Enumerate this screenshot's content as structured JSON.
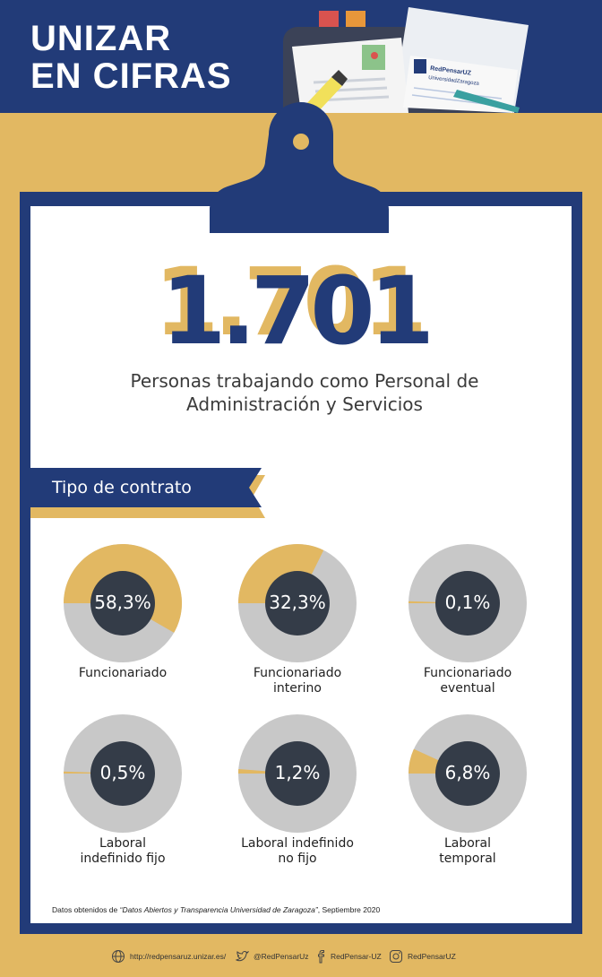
{
  "header": {
    "title_line1": "UNIZAR",
    "title_line2": "EN CIFRAS",
    "logo_line1": "RedPensarUZ",
    "logo_line2": "UniversidadZaragoza"
  },
  "hero": {
    "number": "1.701",
    "subtitle_line1": "Personas trabajando como Personal de",
    "subtitle_line2": "Administración y Servicios"
  },
  "section": {
    "title": "Tipo de contrato"
  },
  "donuts": [
    {
      "pct_label": "58,3%",
      "value": 58.3,
      "label_line1": "Funcionariado",
      "label_line2": ""
    },
    {
      "pct_label": "32,3%",
      "value": 32.3,
      "label_line1": "Funcionariado",
      "label_line2": "interino"
    },
    {
      "pct_label": "0,1%",
      "value": 0.1,
      "label_line1": "Funcionariado",
      "label_line2": "eventual"
    },
    {
      "pct_label": "0,5%",
      "value": 0.5,
      "label_line1": "Laboral",
      "label_line2": "indefinido fijo"
    },
    {
      "pct_label": "1,2%",
      "value": 1.2,
      "label_line1": "Laboral indefinido",
      "label_line2": "no fijo"
    },
    {
      "pct_label": "6,8%",
      "value": 6.8,
      "label_line1": "Laboral",
      "label_line2": "temporal"
    }
  ],
  "footnote": {
    "prefix": "Datos obtenidos de ",
    "source": "“Datos Abiertos y Transparencia Universidad de Zaragoza”",
    "suffix": ", Septiembre 2020"
  },
  "footer": {
    "website": "http://redpensaruz.unizar.es/",
    "twitter": "@RedPensarUz",
    "facebook": "RedPensar-UZ",
    "instagram": "RedPensarUZ"
  },
  "colors": {
    "navy": "#223b78",
    "gold": "#e2b862",
    "grey": "#c8c8c8",
    "dark": "#343c48"
  }
}
